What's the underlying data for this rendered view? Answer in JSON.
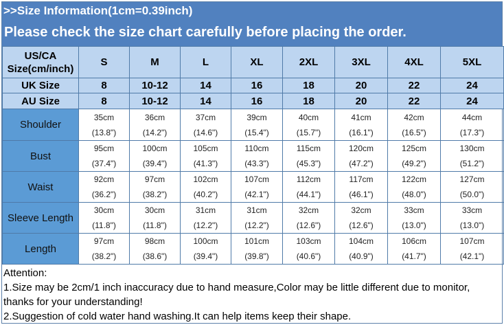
{
  "header": {
    "title": ">>Size Information(1cm=0.39inch)",
    "subtitle": "Please check the size chart carefully before placing the order."
  },
  "table": {
    "us_label": "US/CA Size(cm/inch)",
    "sizes": [
      "S",
      "M",
      "L",
      "XL",
      "2XL",
      "3XL",
      "4XL",
      "5XL"
    ],
    "uk_label": "UK Size",
    "uk": [
      "8",
      "10-12",
      "14",
      "16",
      "18",
      "20",
      "22",
      "24"
    ],
    "au_label": "AU Size",
    "au": [
      "8",
      "10-12",
      "14",
      "16",
      "18",
      "20",
      "22",
      "24"
    ],
    "rows": [
      {
        "label": "Shoulder",
        "cm": [
          "35cm",
          "36cm",
          "37cm",
          "39cm",
          "40cm",
          "41cm",
          "42cm",
          "44cm"
        ],
        "inch": [
          "(13.8\")",
          "(14.2\")",
          "(14.6\")",
          "(15.4\")",
          "(15.7\")",
          "(16.1\")",
          "(16.5\")",
          "(17.3\")"
        ]
      },
      {
        "label": "Bust",
        "cm": [
          "95cm",
          "100cm",
          "105cm",
          "110cm",
          "115cm",
          "120cm",
          "125cm",
          "130cm"
        ],
        "inch": [
          "(37.4\")",
          "(39.4\")",
          "(41.3\")",
          "(43.3\")",
          "(45.3\")",
          "(47.2\")",
          "(49.2\")",
          "(51.2\")"
        ]
      },
      {
        "label": "Waist",
        "cm": [
          "92cm",
          "97cm",
          "102cm",
          "107cm",
          "112cm",
          "117cm",
          "122cm",
          "127cm"
        ],
        "inch": [
          "(36.2\")",
          "(38.2\")",
          "(40.2\")",
          "(42.1\")",
          "(44.1\")",
          "(46.1\")",
          "(48.0\")",
          "(50.0\")"
        ]
      },
      {
        "label": "Sleeve Length",
        "cm": [
          "30cm",
          "30cm",
          "31cm",
          "31cm",
          "32cm",
          "32cm",
          "33cm",
          "33cm"
        ],
        "inch": [
          "(11.8\")",
          "(11.8\")",
          "(12.2\")",
          "(12.2\")",
          "(12.6\")",
          "(12.6\")",
          "(13.0\")",
          "(13.0\")"
        ]
      },
      {
        "label": "Length",
        "cm": [
          "97cm",
          "98cm",
          "100cm",
          "101cm",
          "103cm",
          "104cm",
          "106cm",
          "107cm"
        ],
        "inch": [
          "(38.2\")",
          "(38.6\")",
          "(39.4\")",
          "(39.8\")",
          "(40.6\")",
          "(40.9\")",
          "(41.7\")",
          "(42.1\")"
        ]
      }
    ]
  },
  "notes": [
    "Attention:",
    "1.Size may be 2cm/1 inch inaccuracy due to hand measure,Color may be little different due to monitor,",
    "thanks for your understanding!",
    "2.Suggestion of cold water hand washing.It can help items keep their shape."
  ]
}
